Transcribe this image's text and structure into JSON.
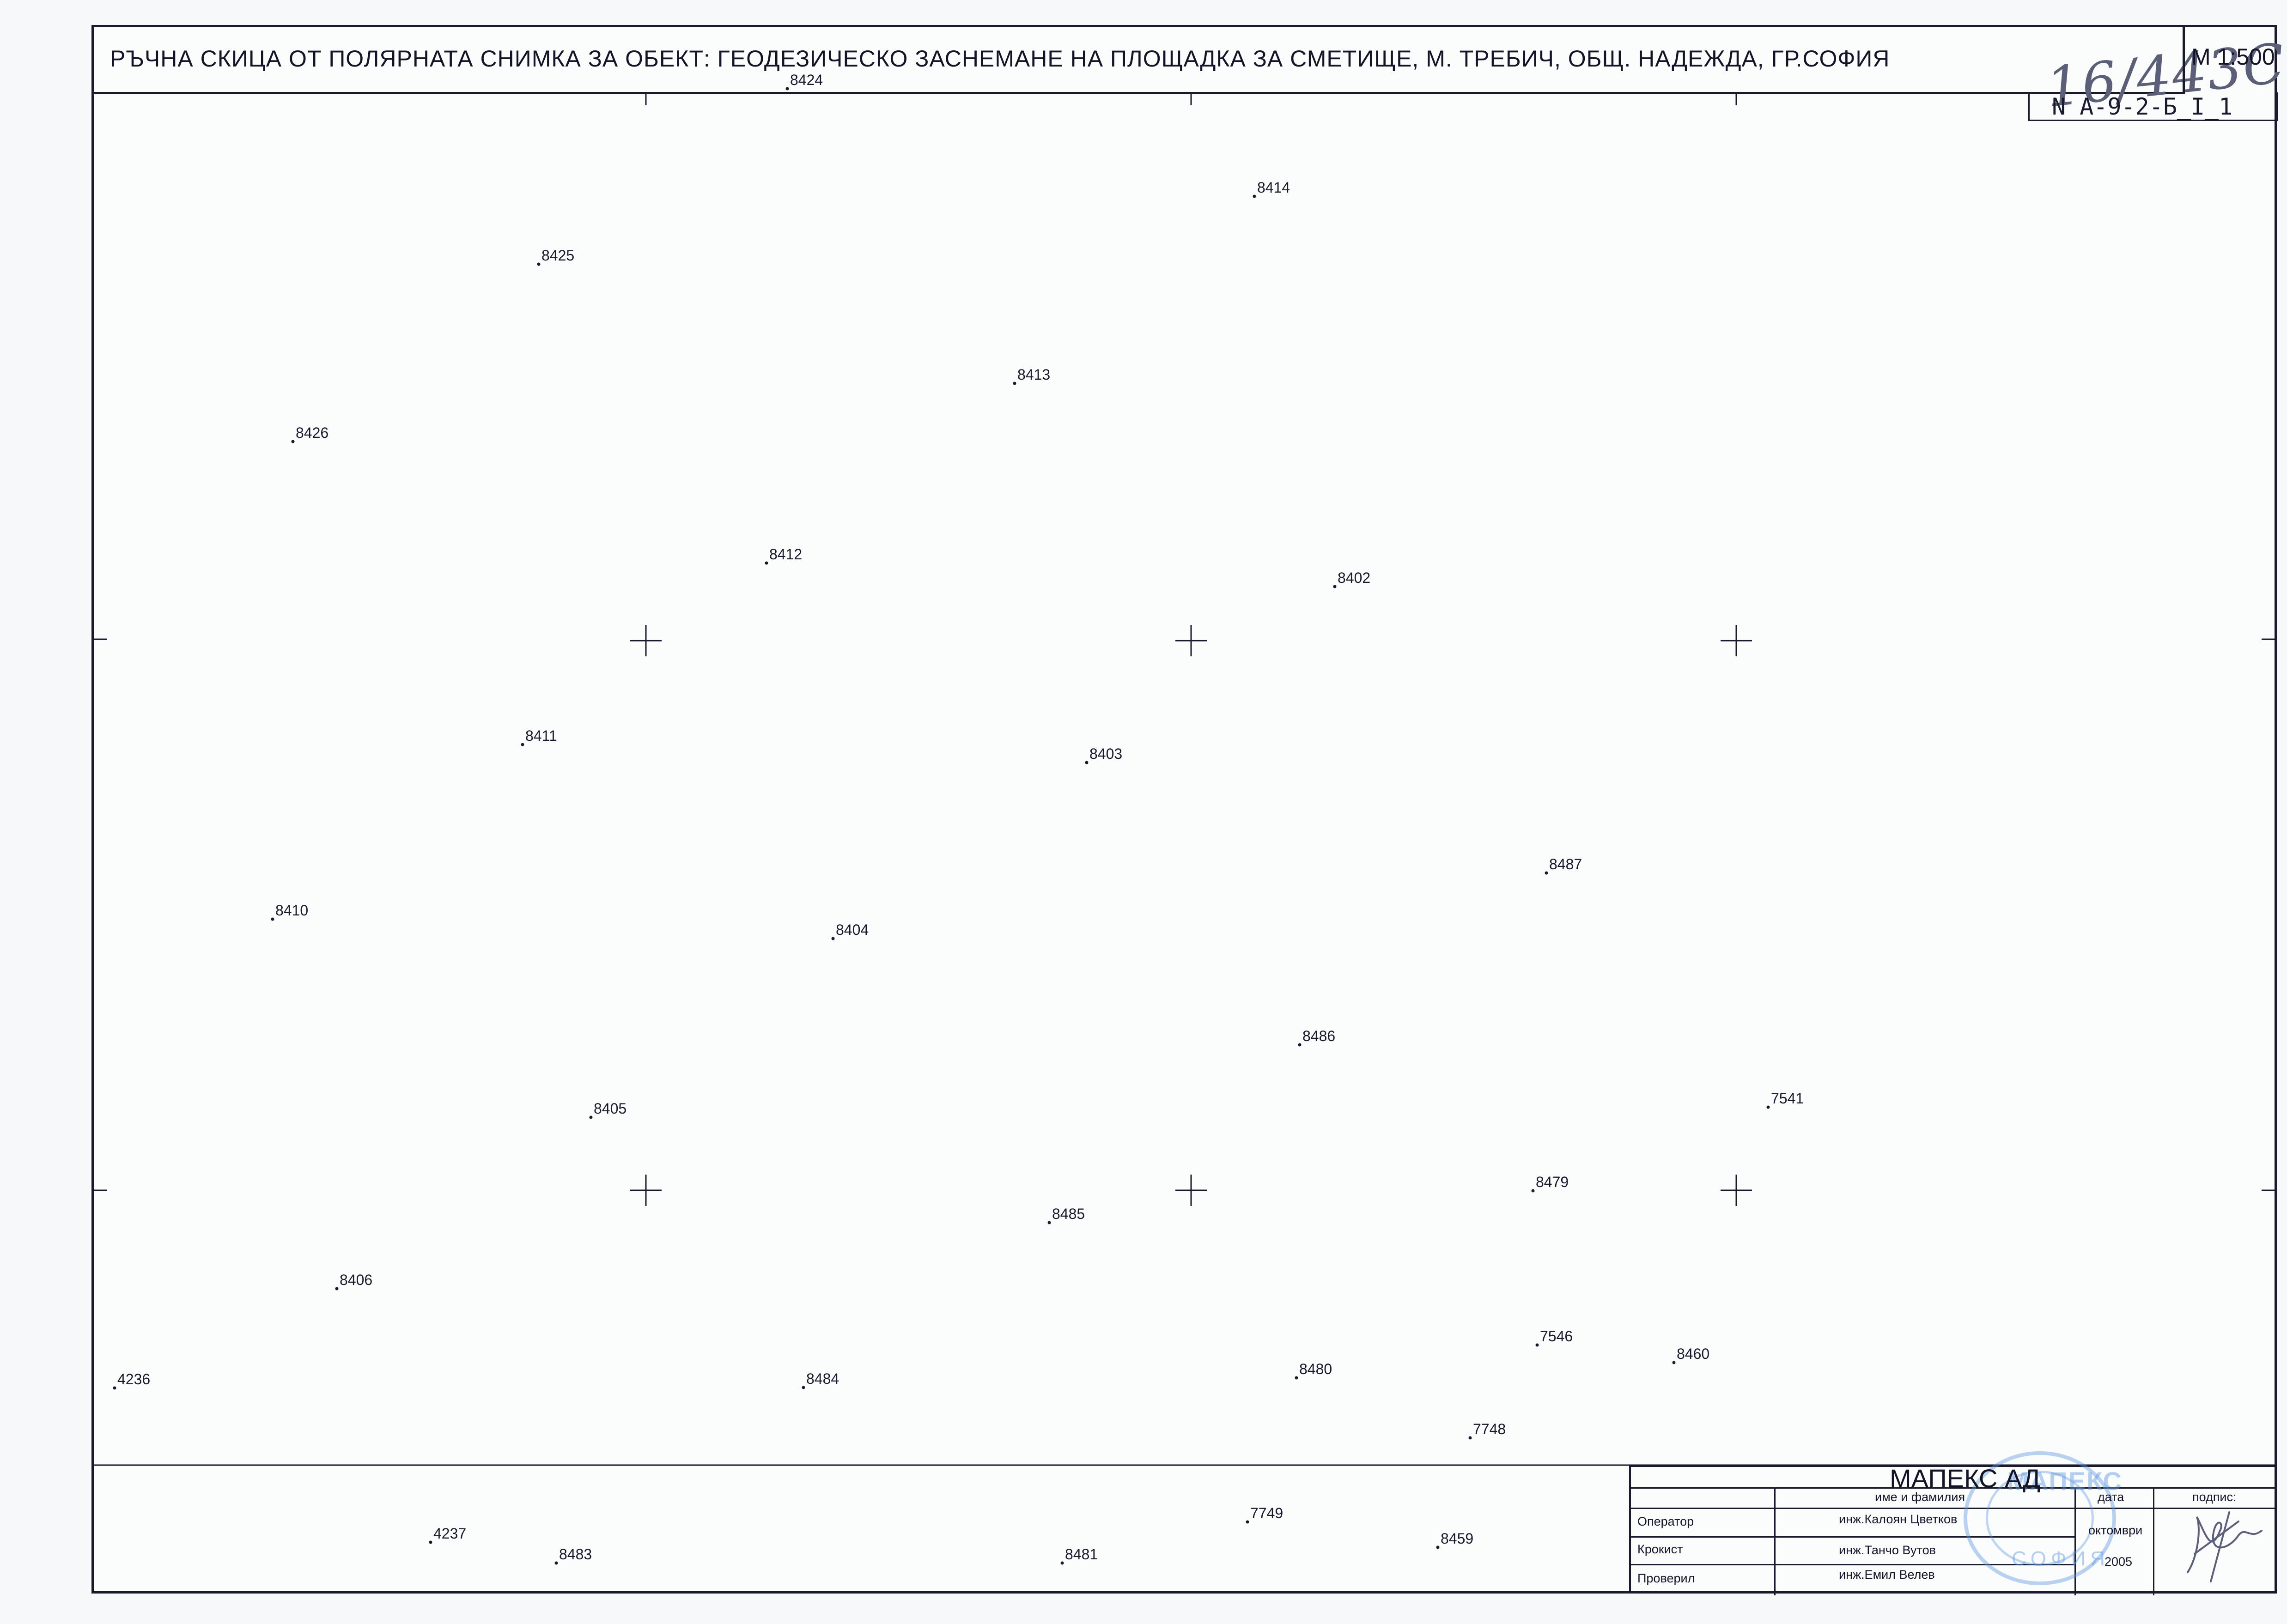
{
  "title": "РЪЧНА  СКИЦА ОТ ПОЛЯРНАТА СНИМКА  ЗА ОБЕКТ: ГЕОДЕЗИЧЕСКО ЗАСНЕМАНЕ НА ПЛОЩАДКА ЗА СМЕТИЩЕ, М. ТРЕБИЧ, ОБЩ. НАДЕЖДА, ГР.СОФИЯ",
  "handwritten_number": "16/443С",
  "scale": "М 1:500",
  "sheet_number": "N A-9-2-Б_I_1",
  "points": [
    "8424",
    "8414",
    "8425",
    "8413",
    "8426",
    "8412",
    "8402",
    "8411",
    "8403",
    "8487",
    "8410",
    "8404",
    "8486",
    "7541",
    "8405",
    "8479",
    "8485",
    "8406",
    "7546",
    "8460",
    "8480",
    "4236",
    "8484",
    "7748",
    "4237",
    "8483",
    "8481",
    "7749",
    "8459"
  ],
  "title_block": {
    "company": "МАПЕКС  АД",
    "stamp_text": "МАПЕКС",
    "stamp_city": "СОФИЯ",
    "columns": {
      "name": "име и фамилия",
      "date": "дата",
      "signature": "подпис:"
    },
    "rows": [
      {
        "role": "Оператор",
        "name": "инж.Калоян Цветков"
      },
      {
        "role": "Кроки­ст",
        "name": "инж.Танчо Вутов"
      },
      {
        "role": "Проверил",
        "name": "инж.Емил Велев"
      }
    ],
    "date_month": "октомври",
    "date_year": "2005"
  },
  "colors": {
    "ink": "#1a1a2e",
    "stamp": "#5a96e1"
  }
}
